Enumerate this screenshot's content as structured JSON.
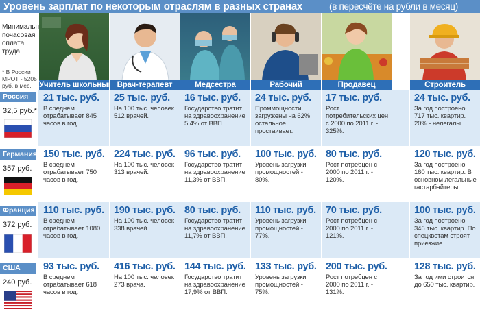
{
  "title": {
    "main": "Уровень зарплат по некоторым отраслям в разных странах",
    "sub": "(в пересчёте на рубли в месяц)"
  },
  "min_wage_label": "Минимальная почасовая оплата труда",
  "min_wage_note": "* В России МРОТ - 5205 руб. в мес.",
  "professions": [
    "Учитель школьный",
    "Врач-терапевт",
    "Медсестра",
    "Рабочий",
    "Продавец",
    "Строитель"
  ],
  "countries": [
    {
      "name": "Россия",
      "wage": "32,5 руб.*",
      "flag": "russia-flag",
      "cells": [
        {
          "amount": "21 тыс. руб.",
          "desc": "В среднем отрабатывает 845 часов в год."
        },
        {
          "amount": "25 тыс. руб.",
          "desc": "На 100 тыс. человек 512 врачей."
        },
        {
          "amount": "16 тыс. руб.",
          "desc": "Государство тратит на здравоохранение 5,4% от ВВП."
        },
        {
          "amount": "24 тыс. руб.",
          "desc": "Проммощности загружены на 62%; остальное простаивает."
        },
        {
          "amount": "17 тыс. руб.",
          "desc": "Рост потребительских цен с 2000 по 2011 г. - 325%."
        },
        {
          "amount": "24 тыс. руб.",
          "desc": "За год построено 717 тыс. квартир. 20% - нелегалы."
        }
      ]
    },
    {
      "name": "Германия",
      "wage": "357 руб.",
      "flag": "germany-flag",
      "cells": [
        {
          "amount": "150 тыс. руб.",
          "desc": "В среднем отрабатывает 750 часов в год."
        },
        {
          "amount": "224 тыс. руб.",
          "desc": "На 100 тыс. человек 313 врачей."
        },
        {
          "amount": "96 тыс. руб.",
          "desc": "Государство тратит на здравоохранение 11,3% от ВВП."
        },
        {
          "amount": "100 тыс. руб.",
          "desc": "Уровень загрузки промощностей - 80%."
        },
        {
          "amount": "80 тыс. руб.",
          "desc": "Рост потребцен с 2000 по 2011 г. - 120%."
        },
        {
          "amount": "120 тыс. руб.",
          "desc": "За год построено 160 тыс. квартир. В основном легальные гастарбайтеры."
        }
      ]
    },
    {
      "name": "Франция",
      "wage": "372 руб.",
      "flag": "france-flag",
      "cells": [
        {
          "amount": "110 тыс. руб.",
          "desc": "В среднем отрабатывает 1080 часов в год."
        },
        {
          "amount": "190 тыс. руб.",
          "desc": "На 100 тыс. человек 338 врачей."
        },
        {
          "amount": "80 тыс. руб.",
          "desc": "Государство тратит на здравоохранение 11,7% от ВВП."
        },
        {
          "amount": "110 тыс. руб.",
          "desc": "Уровень загрузки промощностей - 77%."
        },
        {
          "amount": "70 тыс. руб.",
          "desc": "Рост потребцен с 2000 по 2011 г. - 121%."
        },
        {
          "amount": "100 тыс. руб.",
          "desc": "За год построено 346 тыс. квартир. По спецквотам строят приезжие."
        }
      ]
    },
    {
      "name": "США",
      "wage": "240 руб.",
      "flag": "usa-flag",
      "cells": [
        {
          "amount": "93 тыс. руб.",
          "desc": "В среднем отрабатывает 618 часов в год."
        },
        {
          "amount": "416 тыс. руб.",
          "desc": "На 100 тыс. человек 273 врача."
        },
        {
          "amount": "144 тыс. руб.",
          "desc": "Государство тратит на здравоохранение 17,9% от ВВП."
        },
        {
          "amount": "133 тыс. руб.",
          "desc": "Уровень загрузки промощностей - 75%."
        },
        {
          "amount": "200 тыс. руб.",
          "desc": "Рост потребцен с 2000 по 2011 г. - 131%."
        },
        {
          "amount": "128 тыс. руб.",
          "desc": "За год ими строится до 650 тыс. квартир."
        }
      ]
    }
  ],
  "colors": {
    "header_blue": "#5b8fc7",
    "profession_blue": "#2e6fb7",
    "amount_blue": "#1e5fa8",
    "row_light": "#dbe9f6",
    "row_alt": "#ffffff"
  }
}
